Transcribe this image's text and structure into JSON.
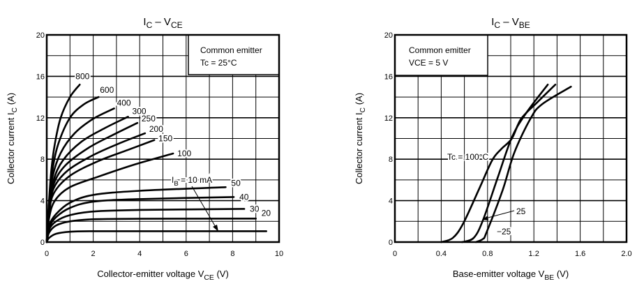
{
  "chart_data": [
    {
      "type": "line",
      "title_parts": [
        {
          "t": "I"
        },
        {
          "t": "C",
          "sub": true
        },
        {
          "t": " – "
        },
        {
          "t": "V"
        },
        {
          "t": "CE",
          "sub": true
        }
      ],
      "xlabel_parts": [
        {
          "t": "Collector-emitter voltage   V"
        },
        {
          "t": "CE",
          "sub": true
        },
        {
          "t": "   (V)"
        }
      ],
      "ylabel_parts": [
        {
          "t": "Collector current   I"
        },
        {
          "t": "C",
          "sub": true
        },
        {
          "t": "   (A)"
        }
      ],
      "xlim": [
        0,
        10
      ],
      "ylim": [
        0,
        20
      ],
      "xticks": [
        "0",
        "2",
        "4",
        "6",
        "8",
        "10"
      ],
      "yticks": [
        "0",
        "4",
        "8",
        "12",
        "16",
        "20"
      ],
      "grid": true,
      "legend_box": [
        "Common emitter",
        "Tc = 25°C"
      ],
      "legend_placement": "top-right",
      "annotation": "IB = 10 mA",
      "annotation_parts": [
        {
          "t": "I"
        },
        {
          "t": "B",
          "sub": true
        },
        {
          "t": " = 10 mA"
        }
      ],
      "series": [
        {
          "name": "800",
          "points": [
            [
              0,
              0
            ],
            [
              0.1,
              4
            ],
            [
              0.2,
              7
            ],
            [
              0.35,
              9.5
            ],
            [
              0.6,
              12
            ],
            [
              1.0,
              14
            ],
            [
              1.42,
              15.2
            ]
          ]
        },
        {
          "name": "600",
          "points": [
            [
              0,
              0
            ],
            [
              0.1,
              3.8
            ],
            [
              0.25,
              7
            ],
            [
              0.5,
              9.5
            ],
            [
              1.0,
              12
            ],
            [
              1.6,
              13.3
            ],
            [
              2.23,
              14.0
            ]
          ]
        },
        {
          "name": "400",
          "points": [
            [
              0,
              0
            ],
            [
              0.1,
              3.6
            ],
            [
              0.25,
              6.3
            ],
            [
              0.6,
              8.6
            ],
            [
              1.2,
              10.5
            ],
            [
              2.0,
              11.9
            ],
            [
              2.9,
              12.9
            ]
          ]
        },
        {
          "name": "300",
          "points": [
            [
              0,
              0
            ],
            [
              0.1,
              3.4
            ],
            [
              0.3,
              6
            ],
            [
              0.7,
              7.9
            ],
            [
              1.5,
              9.7
            ],
            [
              2.5,
              11.0
            ],
            [
              3.5,
              12.1
            ]
          ]
        },
        {
          "name": "250",
          "points": [
            [
              0,
              0
            ],
            [
              0.1,
              3.2
            ],
            [
              0.3,
              5.6
            ],
            [
              0.8,
              7.4
            ],
            [
              1.8,
              9.1
            ],
            [
              2.9,
              10.4
            ],
            [
              3.9,
              11.5
            ]
          ]
        },
        {
          "name": "200",
          "points": [
            [
              0,
              0
            ],
            [
              0.1,
              3
            ],
            [
              0.3,
              5.2
            ],
            [
              0.9,
              6.9
            ],
            [
              2.0,
              8.4
            ],
            [
              3.2,
              9.6
            ],
            [
              4.23,
              10.5
            ]
          ]
        },
        {
          "name": "150",
          "points": [
            [
              0,
              0
            ],
            [
              0.1,
              2.7
            ],
            [
              0.3,
              4.7
            ],
            [
              1.0,
              6.4
            ],
            [
              2.2,
              7.8
            ],
            [
              3.5,
              8.9
            ],
            [
              4.63,
              9.85
            ]
          ]
        },
        {
          "name": "100",
          "points": [
            [
              0,
              0
            ],
            [
              0.1,
              2.3
            ],
            [
              0.35,
              4
            ],
            [
              1.0,
              5.3
            ],
            [
              2.2,
              6.3
            ],
            [
              3.8,
              7.5
            ],
            [
              5.44,
              8.55
            ]
          ]
        },
        {
          "name": "50",
          "points": [
            [
              0,
              0
            ],
            [
              0.1,
              1.6
            ],
            [
              0.4,
              2.7
            ],
            [
              1.0,
              3.8
            ],
            [
              2.0,
              4.55
            ],
            [
              4.0,
              4.95
            ],
            [
              7.7,
              5.3
            ]
          ]
        },
        {
          "name": "40",
          "points": [
            [
              0,
              0
            ],
            [
              0.1,
              1.4
            ],
            [
              0.4,
              2.4
            ],
            [
              1.0,
              3.3
            ],
            [
              2.0,
              3.9
            ],
            [
              4.0,
              4.15
            ],
            [
              8.05,
              4.35
            ]
          ]
        },
        {
          "name": "30",
          "points": [
            [
              0,
              0
            ],
            [
              0.1,
              1.2
            ],
            [
              0.4,
              2.0
            ],
            [
              1.0,
              2.6
            ],
            [
              2.0,
              2.95
            ],
            [
              4.0,
              3.1
            ],
            [
              8.5,
              3.2
            ]
          ]
        },
        {
          "name": "20",
          "points": [
            [
              0,
              0
            ],
            [
              0.1,
              0.9
            ],
            [
              0.4,
              1.6
            ],
            [
              1.0,
              2.0
            ],
            [
              2.0,
              2.2
            ],
            [
              4.0,
              2.25
            ],
            [
              9.0,
              2.27
            ]
          ]
        },
        {
          "name": "10",
          "points": [
            [
              0,
              0
            ],
            [
              0.1,
              0.4
            ],
            [
              0.4,
              0.8
            ],
            [
              1.0,
              1.0
            ],
            [
              2.0,
              1.05
            ],
            [
              4.5,
              1.05
            ],
            [
              9.45,
              1.05
            ]
          ]
        }
      ]
    },
    {
      "type": "line",
      "title_parts": [
        {
          "t": "I"
        },
        {
          "t": "C",
          "sub": true
        },
        {
          "t": " – "
        },
        {
          "t": "V"
        },
        {
          "t": "BE",
          "sub": true
        }
      ],
      "xlabel_parts": [
        {
          "t": "Base-emitter voltage   V"
        },
        {
          "t": "BE",
          "sub": true
        },
        {
          "t": "   (V)"
        }
      ],
      "ylabel_parts": [
        {
          "t": "Collector current   I"
        },
        {
          "t": "C",
          "sub": true
        },
        {
          "t": "   (A)"
        }
      ],
      "xlim": [
        0,
        2.0
      ],
      "ylim": [
        0,
        20
      ],
      "xticks": [
        "0",
        "0.4",
        "0.8",
        "1.2",
        "1.6",
        "2.0"
      ],
      "yticks": [
        "0",
        "4",
        "8",
        "12",
        "16",
        "20"
      ],
      "grid": true,
      "legend_box": [
        "Common emitter",
        "VCE = 5 V"
      ],
      "legend_placement": "top-left",
      "series": [
        {
          "name": "Tc = 100°C",
          "points": [
            [
              0.4,
              0
            ],
            [
              0.5,
              0.4
            ],
            [
              0.59,
              1.8
            ],
            [
              0.73,
              5.2
            ],
            [
              0.84,
              7.9
            ],
            [
              0.92,
              9.0
            ],
            [
              1.01,
              10
            ],
            [
              1.09,
              11.9
            ],
            [
              1.23,
              13.5
            ],
            [
              1.385,
              15.2
            ]
          ]
        },
        {
          "name": "25",
          "points": [
            [
              0.58,
              0
            ],
            [
              0.68,
              0.4
            ],
            [
              0.76,
              2.1
            ],
            [
              0.89,
              6.3
            ],
            [
              1.01,
              10.1
            ],
            [
              1.13,
              12.4
            ],
            [
              1.32,
              15.2
            ]
          ]
        },
        {
          "name": "−25",
          "points": [
            [
              0.7,
              0
            ],
            [
              0.76,
              0.3
            ],
            [
              0.79,
              0.9
            ],
            [
              0.93,
              5.0
            ],
            [
              1.03,
              8.6
            ],
            [
              1.17,
              11.9
            ],
            [
              1.27,
              13.3
            ],
            [
              1.52,
              15.0
            ]
          ]
        }
      ]
    }
  ]
}
